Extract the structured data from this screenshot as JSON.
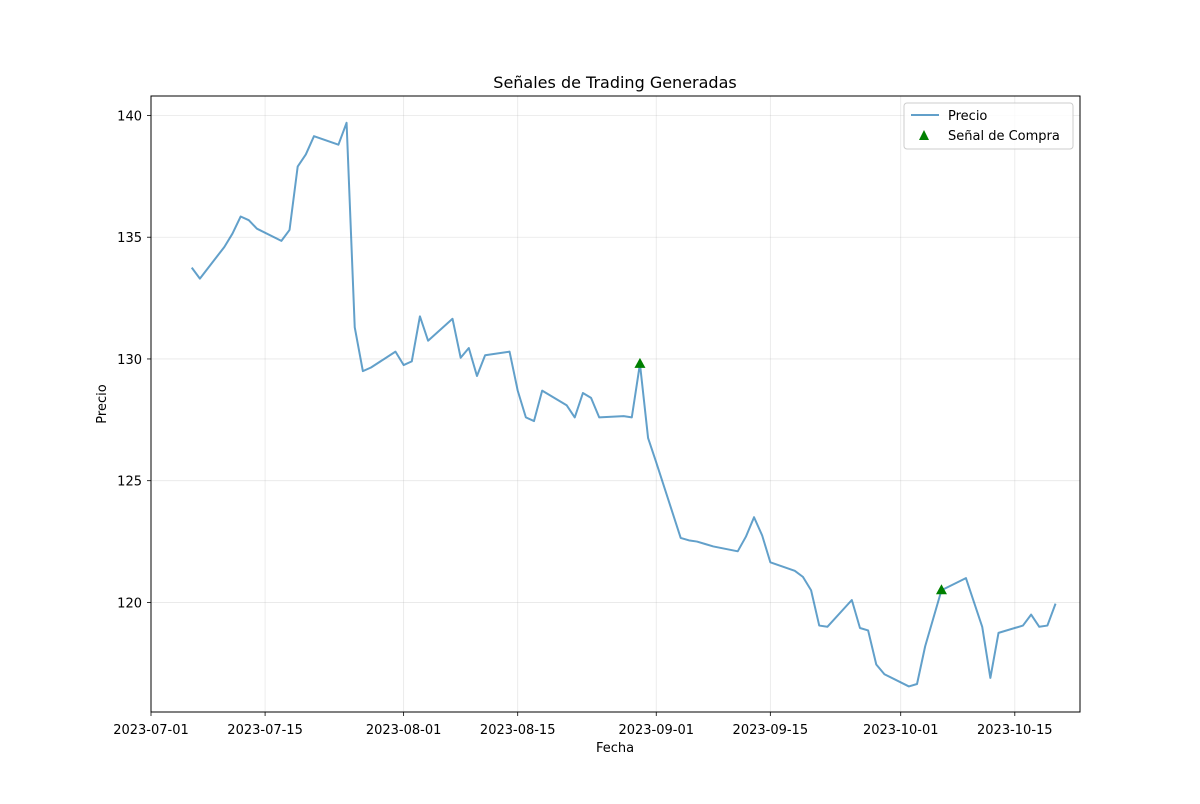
{
  "chart_data": {
    "type": "line",
    "title": "Señales de Trading Generadas",
    "xlabel": "Fecha",
    "ylabel": "Precio",
    "xlim": [
      "2023-07-01",
      "2023-10-23"
    ],
    "ylim": [
      115.5,
      140.8
    ],
    "x_ticks": [
      "2023-07-01",
      "2023-07-15",
      "2023-08-01",
      "2023-08-15",
      "2023-09-01",
      "2023-09-15",
      "2023-10-01",
      "2023-10-15"
    ],
    "y_ticks": [
      120,
      125,
      130,
      135,
      140
    ],
    "grid": true,
    "legend_position": "top-right",
    "colors": {
      "price": "#1f77b4",
      "buy": "#008000"
    },
    "series": [
      {
        "name": "Precio",
        "type": "line",
        "x": [
          "2023-07-06",
          "2023-07-07",
          "2023-07-10",
          "2023-07-11",
          "2023-07-12",
          "2023-07-13",
          "2023-07-14",
          "2023-07-17",
          "2023-07-18",
          "2023-07-19",
          "2023-07-20",
          "2023-07-21",
          "2023-07-24",
          "2023-07-25",
          "2023-07-26",
          "2023-07-27",
          "2023-07-28",
          "2023-07-31",
          "2023-08-01",
          "2023-08-02",
          "2023-08-03",
          "2023-08-04",
          "2023-08-07",
          "2023-08-08",
          "2023-08-09",
          "2023-08-10",
          "2023-08-11",
          "2023-08-14",
          "2023-08-15",
          "2023-08-16",
          "2023-08-17",
          "2023-08-18",
          "2023-08-21",
          "2023-08-22",
          "2023-08-23",
          "2023-08-24",
          "2023-08-25",
          "2023-08-28",
          "2023-08-29",
          "2023-08-30",
          "2023-08-31",
          "2023-09-01",
          "2023-09-04",
          "2023-09-05",
          "2023-09-06",
          "2023-09-07",
          "2023-09-08",
          "2023-09-11",
          "2023-09-12",
          "2023-09-13",
          "2023-09-14",
          "2023-09-15",
          "2023-09-18",
          "2023-09-19",
          "2023-09-20",
          "2023-09-21",
          "2023-09-22",
          "2023-09-25",
          "2023-09-26",
          "2023-09-27",
          "2023-09-28",
          "2023-09-29",
          "2023-10-02",
          "2023-10-03",
          "2023-10-04",
          "2023-10-05",
          "2023-10-06",
          "2023-10-09",
          "2023-10-10",
          "2023-10-11",
          "2023-10-12",
          "2023-10-13",
          "2023-10-16",
          "2023-10-17",
          "2023-10-18",
          "2023-10-19",
          "2023-10-20"
        ],
        "y": [
          133.75,
          133.3,
          134.6,
          135.15,
          135.85,
          135.7,
          135.35,
          134.85,
          135.3,
          137.9,
          138.4,
          139.15,
          138.8,
          139.7,
          131.3,
          129.5,
          129.65,
          130.3,
          129.75,
          129.9,
          131.75,
          130.75,
          131.65,
          130.05,
          130.45,
          129.3,
          130.15,
          130.3,
          128.7,
          127.6,
          127.45,
          128.7,
          128.1,
          127.6,
          128.6,
          128.4,
          127.6,
          127.65,
          127.6,
          129.8,
          126.75,
          125.75,
          122.65,
          122.55,
          122.5,
          122.4,
          122.3,
          122.1,
          122.7,
          123.5,
          122.75,
          121.65,
          121.3,
          121.05,
          120.5,
          119.05,
          119.0,
          120.1,
          118.95,
          118.85,
          117.45,
          117.05,
          116.55,
          116.65,
          118.2,
          119.35,
          120.5,
          121.0,
          120.0,
          119.0,
          116.9,
          118.75,
          119.05,
          119.5,
          119.0,
          119.05,
          119.95
        ]
      },
      {
        "name": "Señal de Compra",
        "type": "scatter",
        "marker": "triangle-up",
        "x": [
          "2023-08-30",
          "2023-10-06"
        ],
        "y": [
          129.8,
          120.5
        ]
      }
    ]
  }
}
